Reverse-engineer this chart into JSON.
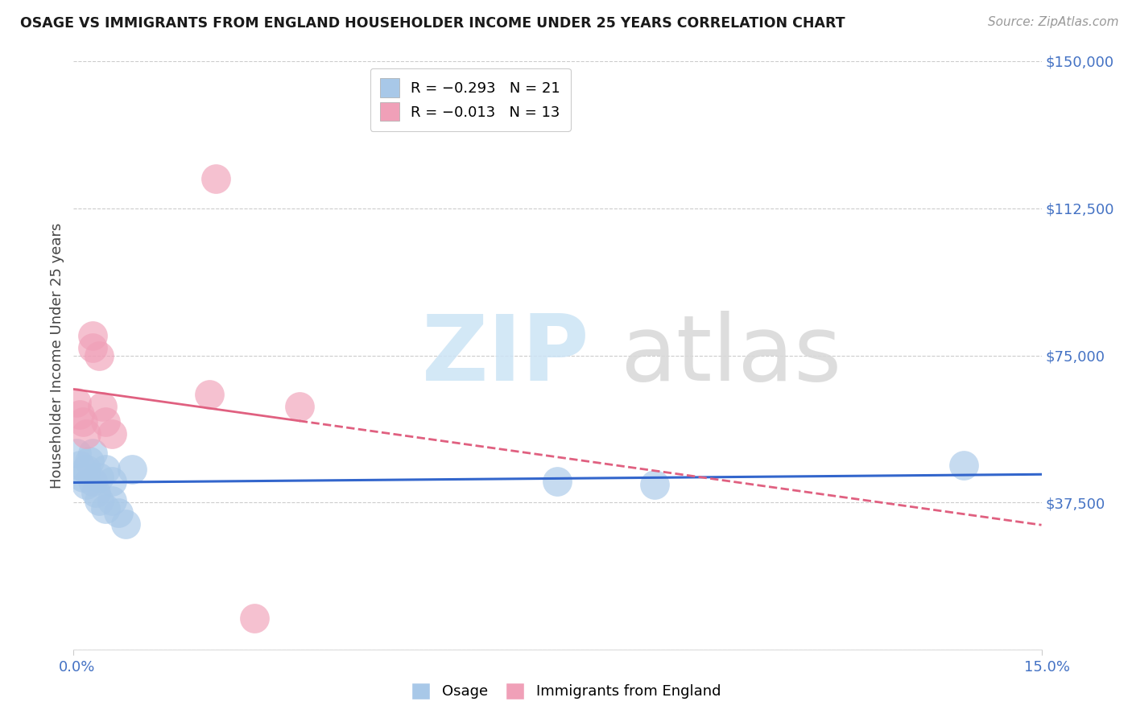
{
  "title": "OSAGE VS IMMIGRANTS FROM ENGLAND HOUSEHOLDER INCOME UNDER 25 YEARS CORRELATION CHART",
  "source": "Source: ZipAtlas.com",
  "ylabel": "Householder Income Under 25 years",
  "yticks": [
    0,
    37500,
    75000,
    112500,
    150000
  ],
  "ytick_labels": [
    "",
    "$37,500",
    "$75,000",
    "$112,500",
    "$150,000"
  ],
  "xlim": [
    0,
    0.15
  ],
  "ylim": [
    0,
    150000
  ],
  "legend1_label": "R = −0.293   N = 21",
  "legend2_label": "R = −0.013   N = 13",
  "osage_color": "#a8c8e8",
  "england_color": "#f0a0b8",
  "osage_line_color": "#3366cc",
  "england_line_color": "#e06080",
  "osage_x": [
    0.0005,
    0.001,
    0.0015,
    0.002,
    0.002,
    0.0025,
    0.003,
    0.003,
    0.0035,
    0.004,
    0.004,
    0.005,
    0.005,
    0.006,
    0.006,
    0.007,
    0.008,
    0.009,
    0.075,
    0.09,
    0.138
  ],
  "osage_y": [
    50000,
    47000,
    44000,
    46000,
    42000,
    48000,
    43000,
    50000,
    40000,
    38000,
    44000,
    36000,
    46000,
    43000,
    38000,
    35000,
    32000,
    46000,
    43000,
    42000,
    47000
  ],
  "england_x": [
    0.0005,
    0.001,
    0.0015,
    0.002,
    0.003,
    0.003,
    0.004,
    0.0045,
    0.005,
    0.006,
    0.021,
    0.035,
    0.028
  ],
  "england_y": [
    63000,
    60000,
    58000,
    55000,
    80000,
    77000,
    75000,
    62000,
    58000,
    55000,
    65000,
    62000,
    8000
  ],
  "england_outlier_x": [
    0.022
  ],
  "england_outlier_y": [
    120000
  ],
  "title_color": "#1a1a1a",
  "axis_label_color": "#4472c4",
  "grid_color": "#cccccc",
  "source_color": "#999999",
  "background_color": "#ffffff",
  "watermark_zip_color": "#cce4f5",
  "watermark_atlas_color": "#d8d8d8"
}
